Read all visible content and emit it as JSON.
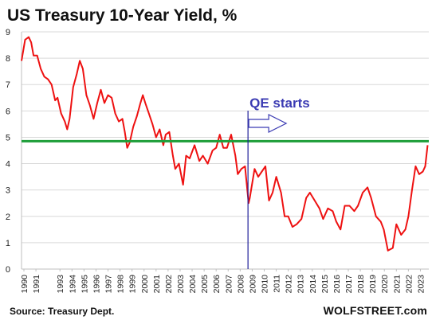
{
  "chart_data": {
    "type": "line",
    "title": "US Treasury 10-Year Yield, %",
    "xlabel": "",
    "ylabel": "",
    "ylim": [
      0,
      9
    ],
    "xlim": [
      1990,
      2023.9
    ],
    "yticks": [
      0,
      1,
      2,
      3,
      4,
      5,
      6,
      7,
      8,
      9
    ],
    "xticks": [
      1990,
      1991,
      1993,
      1994,
      1995,
      1996,
      1997,
      1998,
      1999,
      2000,
      2001,
      2002,
      2003,
      2004,
      2005,
      2006,
      2007,
      2008,
      2009,
      2010,
      2011,
      2012,
      2013,
      2014,
      2015,
      2016,
      2017,
      2018,
      2019,
      2020,
      2021,
      2022,
      2023
    ],
    "grid": "horizontal",
    "series": [
      {
        "color": "#ee1111",
        "x": [
          1990.0,
          1990.3,
          1990.6,
          1990.8,
          1991.0,
          1991.3,
          1991.6,
          1991.9,
          1992.2,
          1992.5,
          1992.8,
          1993.0,
          1993.3,
          1993.6,
          1993.8,
          1994.0,
          1994.3,
          1994.6,
          1994.85,
          1995.1,
          1995.4,
          1995.7,
          1996.0,
          1996.3,
          1996.6,
          1996.9,
          1997.2,
          1997.5,
          1997.8,
          1998.1,
          1998.4,
          1998.6,
          1998.8,
          1999.0,
          1999.3,
          1999.6,
          1999.9,
          2000.1,
          2000.3,
          2000.6,
          2000.9,
          2001.2,
          2001.5,
          2001.8,
          2002.0,
          2002.3,
          2002.6,
          2002.8,
          2003.1,
          2003.45,
          2003.7,
          2004.0,
          2004.4,
          2004.8,
          2005.1,
          2005.5,
          2005.9,
          2006.2,
          2006.5,
          2006.8,
          2007.1,
          2007.45,
          2007.8,
          2008.0,
          2008.3,
          2008.6,
          2008.9,
          2009.0,
          2009.4,
          2009.7,
          2010.0,
          2010.3,
          2010.6,
          2010.9,
          2011.2,
          2011.6,
          2011.9,
          2012.2,
          2012.55,
          2012.9,
          2013.3,
          2013.7,
          2014.0,
          2014.4,
          2014.8,
          2015.1,
          2015.5,
          2015.9,
          2016.2,
          2016.55,
          2016.9,
          2017.3,
          2017.7,
          2018.0,
          2018.4,
          2018.8,
          2019.1,
          2019.5,
          2019.9,
          2020.15,
          2020.5,
          2020.9,
          2021.2,
          2021.6,
          2021.95,
          2022.2,
          2022.5,
          2022.8,
          2023.1,
          2023.4,
          2023.6,
          2023.8
        ],
        "values": [
          7.9,
          8.7,
          8.8,
          8.6,
          8.1,
          8.1,
          7.6,
          7.3,
          7.2,
          7.0,
          6.4,
          6.5,
          5.9,
          5.6,
          5.3,
          5.7,
          6.9,
          7.4,
          7.9,
          7.6,
          6.6,
          6.2,
          5.7,
          6.3,
          6.8,
          6.3,
          6.6,
          6.5,
          5.9,
          5.6,
          5.7,
          5.2,
          4.6,
          4.8,
          5.4,
          5.8,
          6.3,
          6.6,
          6.3,
          5.9,
          5.5,
          5.0,
          5.3,
          4.7,
          5.1,
          5.2,
          4.3,
          3.8,
          4.0,
          3.2,
          4.3,
          4.2,
          4.7,
          4.1,
          4.3,
          4.0,
          4.5,
          4.6,
          5.1,
          4.6,
          4.6,
          5.1,
          4.3,
          3.6,
          3.8,
          3.9,
          2.5,
          2.7,
          3.8,
          3.5,
          3.7,
          3.9,
          2.6,
          2.9,
          3.5,
          2.9,
          2.0,
          2.0,
          1.6,
          1.7,
          1.9,
          2.7,
          2.9,
          2.6,
          2.3,
          1.9,
          2.3,
          2.2,
          1.8,
          1.5,
          2.4,
          2.4,
          2.2,
          2.4,
          2.9,
          3.1,
          2.7,
          2.0,
          1.8,
          1.5,
          0.7,
          0.8,
          1.7,
          1.3,
          1.5,
          2.0,
          3.0,
          3.9,
          3.6,
          3.7,
          3.9,
          4.7
        ]
      }
    ],
    "reference_line": {
      "y": 4.85,
      "color": "#1e9e3a"
    },
    "vertical_line": {
      "x": 2008.85,
      "color": "#1f1f9a"
    },
    "annotation": {
      "text": "QE starts",
      "color": "#3b3bb3"
    },
    "source": "Source: Treasury Dept.",
    "brand": "WOLFSTREET.com"
  }
}
